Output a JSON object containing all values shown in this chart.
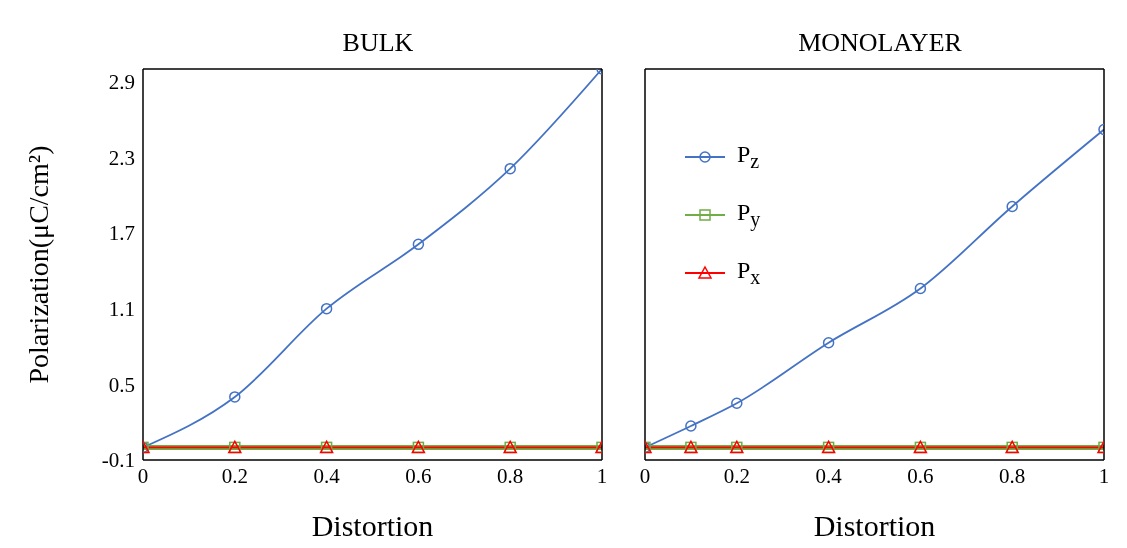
{
  "chart_data": [
    {
      "type": "line",
      "title": "BULK",
      "xlabel": "Distortion",
      "ylabel": "Polarization(μC/cm²)",
      "x": [
        0,
        0.2,
        0.4,
        0.6,
        0.8,
        1
      ],
      "xlim": [
        0,
        1
      ],
      "xticks": [
        0,
        0.2,
        0.4,
        0.6,
        0.8,
        1
      ],
      "ylim": [
        -0.1,
        3.0
      ],
      "yticks": [
        -0.1,
        0.5,
        1.1,
        1.7,
        2.3,
        2.9
      ],
      "grid": false,
      "legend": false,
      "series": [
        {
          "color": "#4472c4",
          "marker": "circle",
          "values": [
            0,
            0.4,
            1.1,
            1.61,
            2.21,
            3.0
          ]
        },
        {
          "color": "#70ad47",
          "marker": "square",
          "values": [
            0,
            0,
            0,
            0,
            0,
            0
          ]
        },
        {
          "color": "#ff0000",
          "marker": "triangle",
          "values": [
            0,
            0,
            0,
            0,
            0,
            0
          ]
        }
      ]
    },
    {
      "type": "line",
      "title": "MONOLAYER",
      "xlabel": "Distortion",
      "x": [
        0,
        0.1,
        0.2,
        0.4,
        0.6,
        0.8,
        1
      ],
      "xlim": [
        0,
        1
      ],
      "xticks": [
        0,
        0.2,
        0.4,
        0.6,
        0.8,
        1
      ],
      "ylim": [
        -0.1,
        3.0
      ],
      "tick_labels": "x",
      "grid": false,
      "legend": "top left",
      "series": [
        {
          "name": "P$_{z}$",
          "color": "#4472c4",
          "marker": "circle",
          "values": [
            0,
            0.17,
            0.35,
            0.83,
            1.26,
            1.91,
            2.52
          ]
        },
        {
          "name": "P$_{y}$",
          "color": "#70ad47",
          "marker": "square",
          "values": [
            0,
            0,
            0,
            0,
            0,
            0,
            0
          ]
        },
        {
          "name": "P$_{x}$",
          "color": "#ff0000",
          "marker": "triangle",
          "values": [
            0,
            0,
            0,
            0,
            0,
            0,
            0
          ]
        }
      ]
    }
  ]
}
